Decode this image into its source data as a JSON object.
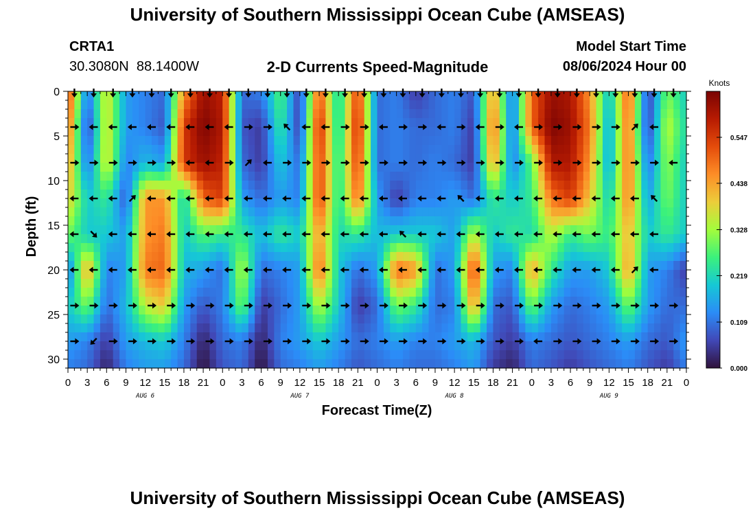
{
  "header": {
    "title": "University of Southern Mississippi Ocean Cube (AMSEAS)",
    "station_id": "CRTA1",
    "station_coords": "30.3080N  88.1400W",
    "subtitle": "2-D Currents Speed-Magnitude",
    "model_start_label": "Model Start Time",
    "model_start_value": "08/06/2024 Hour 00"
  },
  "footer": {
    "title": "University of Southern Mississippi Ocean Cube (AMSEAS)"
  },
  "chart_data": {
    "type": "heatmap",
    "title": "2-D Currents Speed-Magnitude",
    "xlabel": "Forecast Time(Z)",
    "ylabel": "Depth (ft)",
    "x_tick_labels": [
      "0",
      "3",
      "6",
      "9",
      "12",
      "15",
      "18",
      "21",
      "0",
      "3",
      "6",
      "9",
      "12",
      "15",
      "18",
      "21",
      "0",
      "3",
      "6",
      "9",
      "12",
      "15",
      "18",
      "21",
      "0",
      "3",
      "6",
      "9",
      "12",
      "15",
      "18",
      "21",
      "0"
    ],
    "x_range_hours": [
      0,
      96
    ],
    "date_labels": [
      {
        "label": "AUG 6",
        "hour": 12
      },
      {
        "label": "AUG 7",
        "hour": 36
      },
      {
        "label": "AUG 8",
        "hour": 60
      },
      {
        "label": "AUG 9",
        "hour": 84
      }
    ],
    "y_ticks": [
      0,
      5,
      10,
      15,
      20,
      25,
      30
    ],
    "y_range_ft": [
      0,
      31
    ],
    "colorbar": {
      "units": "Knots",
      "ticks": [
        "0.000",
        "0.109",
        "0.219",
        "0.328",
        "0.438",
        "0.547"
      ],
      "range": [
        0,
        0.656
      ]
    },
    "depth_levels_ft": [
      0,
      4,
      8,
      12,
      16,
      20,
      24,
      28,
      31
    ],
    "time_hours": [
      0,
      3,
      6,
      9,
      12,
      15,
      18,
      21,
      24,
      27,
      30,
      33,
      36,
      39,
      42,
      45,
      48,
      51,
      54,
      57,
      60,
      63,
      66,
      69,
      72,
      75,
      78,
      81,
      84,
      87,
      90,
      93,
      96
    ],
    "speed_knots": [
      [
        0.55,
        0.1,
        0.38,
        0.15,
        0.12,
        0.1,
        0.45,
        0.62,
        0.58,
        0.1,
        0.12,
        0.28,
        0.05,
        0.52,
        0.2,
        0.55,
        0.1,
        0.12,
        0.05,
        0.1,
        0.12,
        0.08,
        0.45,
        0.1,
        0.5,
        0.62,
        0.6,
        0.45,
        0.18,
        0.52,
        0.05,
        0.3,
        0.2
      ],
      [
        0.5,
        0.05,
        0.38,
        0.15,
        0.12,
        0.08,
        0.55,
        0.65,
        0.6,
        0.08,
        0.05,
        0.25,
        0.05,
        0.58,
        0.2,
        0.58,
        0.1,
        0.12,
        0.1,
        0.1,
        0.12,
        0.05,
        0.5,
        0.1,
        0.5,
        0.65,
        0.62,
        0.48,
        0.15,
        0.5,
        0.05,
        0.35,
        0.22
      ],
      [
        0.45,
        0.1,
        0.38,
        0.12,
        0.18,
        0.15,
        0.55,
        0.62,
        0.58,
        0.1,
        0.05,
        0.2,
        0.1,
        0.55,
        0.22,
        0.55,
        0.1,
        0.12,
        0.1,
        0.12,
        0.1,
        0.05,
        0.45,
        0.12,
        0.28,
        0.6,
        0.6,
        0.45,
        0.15,
        0.5,
        0.1,
        0.32,
        0.2
      ],
      [
        0.4,
        0.2,
        0.25,
        0.08,
        0.45,
        0.45,
        0.2,
        0.5,
        0.55,
        0.15,
        0.1,
        0.15,
        0.12,
        0.55,
        0.22,
        0.5,
        0.15,
        0.05,
        0.12,
        0.12,
        0.15,
        0.1,
        0.25,
        0.2,
        0.25,
        0.48,
        0.55,
        0.4,
        0.2,
        0.48,
        0.15,
        0.3,
        0.2
      ],
      [
        0.3,
        0.2,
        0.2,
        0.15,
        0.45,
        0.48,
        0.2,
        0.28,
        0.25,
        0.25,
        0.18,
        0.25,
        0.2,
        0.45,
        0.22,
        0.25,
        0.18,
        0.2,
        0.2,
        0.2,
        0.15,
        0.35,
        0.2,
        0.25,
        0.22,
        0.35,
        0.25,
        0.3,
        0.25,
        0.42,
        0.2,
        0.25,
        0.2
      ],
      [
        0.1,
        0.45,
        0.12,
        0.15,
        0.48,
        0.5,
        0.18,
        0.15,
        0.1,
        0.35,
        0.1,
        0.12,
        0.15,
        0.5,
        0.2,
        0.1,
        0.15,
        0.5,
        0.45,
        0.1,
        0.15,
        0.55,
        0.15,
        0.12,
        0.45,
        0.25,
        0.15,
        0.15,
        0.2,
        0.45,
        0.15,
        0.12,
        0.05
      ],
      [
        0.2,
        0.3,
        0.1,
        0.18,
        0.35,
        0.4,
        0.15,
        0.08,
        0.12,
        0.3,
        0.05,
        0.1,
        0.15,
        0.35,
        0.2,
        0.05,
        0.1,
        0.3,
        0.25,
        0.1,
        0.12,
        0.45,
        0.1,
        0.08,
        0.3,
        0.15,
        0.1,
        0.12,
        0.15,
        0.3,
        0.15,
        0.1,
        0.1
      ],
      [
        0.15,
        0.12,
        0.05,
        0.15,
        0.18,
        0.2,
        0.12,
        0.02,
        0.1,
        0.12,
        0.02,
        0.12,
        0.15,
        0.2,
        0.15,
        0.1,
        0.12,
        0.15,
        0.12,
        0.12,
        0.15,
        0.18,
        0.08,
        0.05,
        0.12,
        0.1,
        0.08,
        0.1,
        0.12,
        0.15,
        0.1,
        0.08,
        0.15
      ],
      [
        0.12,
        0.1,
        0.02,
        0.12,
        0.15,
        0.15,
        0.1,
        0.0,
        0.08,
        0.1,
        0.0,
        0.1,
        0.12,
        0.15,
        0.12,
        0.08,
        0.1,
        0.12,
        0.1,
        0.1,
        0.12,
        0.15,
        0.05,
        0.02,
        0.1,
        0.08,
        0.05,
        0.08,
        0.1,
        0.12,
        0.08,
        0.05,
        0.12
      ]
    ],
    "arrow_depths_ft": [
      0,
      4,
      8,
      12,
      16,
      20,
      24,
      28
    ],
    "arrow_rows": [
      "↓↓↓↓↓↓↓↓↓↓↓↓↓↓↓↓↓↓↓↓↓↓↓↓↓↓↓↓↓↓↓↓",
      "→←←←←←←←←→→↖←←→→←→→←→←→←→→→→→↗←",
      "→→→→→→←←→↗←→→→→→→→→→→→→→→→→→→→→←",
      "←←←↗←←←←←←←←←←←←←←←←↖←←←←←←←←←↖",
      "←↘←←←←←←←←←←←←←←←↖←←←←←←←←←←←←←",
      "←←←←←←←←←←←←←←←←←←←←←←←←←←←←←↗←",
      "→→→→→→→→→→→→→→→→→→→→→→→→→→→→→→→→",
      "→↙→→→→→→→→→→→→→→→→→→→→→→←→→→→→→→"
    ]
  }
}
